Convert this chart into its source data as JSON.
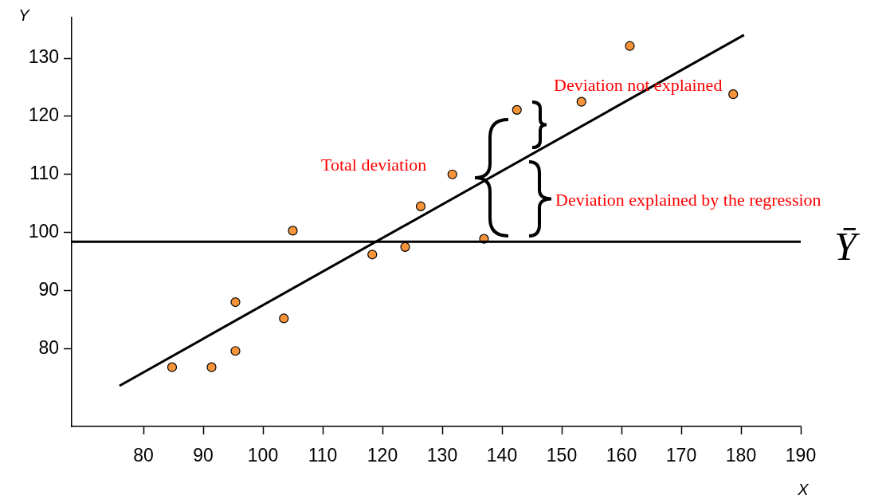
{
  "chart_data": {
    "type": "scatter",
    "xlabel": "X",
    "ylabel": "Y",
    "xlim": [
      68,
      190
    ],
    "xticks": [
      80,
      90,
      100,
      110,
      120,
      130,
      140,
      150,
      160,
      170,
      180,
      190
    ],
    "ylim": [
      66.6,
      137
    ],
    "yticks": [
      80,
      90,
      100,
      110,
      120,
      130
    ],
    "marker": "circle",
    "series": [
      {
        "type": "scatter",
        "color": "#f7943a",
        "x": [
          84.8,
          91.4,
          95.4,
          95.4,
          103.5,
          105.0,
          118.3,
          123.8,
          126.4,
          131.7,
          137.0,
          142.5,
          153.3,
          161.4,
          178.7
        ],
        "values": [
          76.8,
          76.8,
          88.0,
          79.6,
          85.2,
          100.3,
          96.2,
          97.5,
          104.5,
          110.0,
          98.9,
          121.1,
          122.5,
          132.1,
          123.8
        ]
      },
      {
        "type": "line",
        "color": "#000000",
        "marker": "none",
        "x": [
          76.0,
          180.5
        ],
        "values": [
          73.6,
          134.0
        ]
      }
    ],
    "ref_lines": [
      {
        "axis": "y",
        "value": 98.4,
        "label": "Ȳ",
        "color": "#000000"
      }
    ],
    "annotations": [
      "Total deviation",
      "Deviation not explained",
      "Deviation explained by the regression"
    ]
  }
}
